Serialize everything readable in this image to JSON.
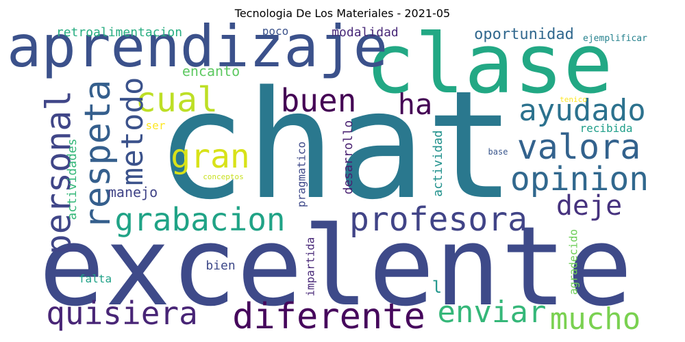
{
  "chart_data": {
    "type": "wordcloud",
    "title": "Tecnologia De Los Materiales - 2021-05",
    "words": [
      {
        "text": "chat",
        "weight": 100,
        "color": "#2a788e"
      },
      {
        "text": "excelente",
        "weight": 85,
        "color": "#3e4a89"
      },
      {
        "text": "clase",
        "weight": 62,
        "color": "#22a884"
      },
      {
        "text": "aprendizaje",
        "weight": 45,
        "color": "#3b518b"
      },
      {
        "text": "diferente",
        "weight": 28,
        "color": "#46085c"
      },
      {
        "text": "respeta",
        "weight": 26,
        "color": "#355f8d"
      },
      {
        "text": "personal",
        "weight": 26,
        "color": "#404688"
      },
      {
        "text": "valora",
        "weight": 26,
        "color": "#33628d"
      },
      {
        "text": "opinion",
        "weight": 25,
        "color": "#31688e"
      },
      {
        "text": "profesora",
        "weight": 25,
        "color": "#414487"
      },
      {
        "text": "quisiera",
        "weight": 24,
        "color": "#482576"
      },
      {
        "text": "cual",
        "weight": 24,
        "color": "#bddf26"
      },
      {
        "text": "grabacion",
        "weight": 23,
        "color": "#20a386"
      },
      {
        "text": "gran",
        "weight": 23,
        "color": "#d8e219"
      },
      {
        "text": "metodo",
        "weight": 23,
        "color": "#3b528b"
      },
      {
        "text": "buen",
        "weight": 22,
        "color": "#440154"
      },
      {
        "text": "ayudado",
        "weight": 22,
        "color": "#2c728e"
      },
      {
        "text": "enviar",
        "weight": 22,
        "color": "#35b779"
      },
      {
        "text": "mucho",
        "weight": 22,
        "color": "#7ad151"
      },
      {
        "text": "ha",
        "weight": 21,
        "color": "#440154"
      },
      {
        "text": "deje",
        "weight": 21,
        "color": "#46327e"
      },
      {
        "text": "oportunidad",
        "weight": 15,
        "color": "#31688e"
      },
      {
        "text": "encanto",
        "weight": 13,
        "color": "#5ec962"
      },
      {
        "text": "manejo",
        "weight": 13,
        "color": "#414487"
      },
      {
        "text": "modalidad",
        "weight": 12,
        "color": "#482878"
      },
      {
        "text": "retroalimentacion",
        "weight": 12,
        "color": "#27ad81"
      },
      {
        "text": "desarrollo",
        "weight": 12,
        "color": "#481f70"
      },
      {
        "text": "actividad",
        "weight": 12,
        "color": "#21918c"
      },
      {
        "text": "actividades",
        "weight": 12,
        "color": "#35b779"
      },
      {
        "text": "pragmatico",
        "weight": 11,
        "color": "#3e4989"
      },
      {
        "text": "impartida",
        "weight": 11,
        "color": "#482878"
      },
      {
        "text": "agradecido",
        "weight": 11,
        "color": "#6ece58"
      },
      {
        "text": "recibida",
        "weight": 10,
        "color": "#1f9e89"
      },
      {
        "text": "poco",
        "weight": 10,
        "color": "#3b528b"
      },
      {
        "text": "bien",
        "weight": 10,
        "color": "#3e4989"
      },
      {
        "text": "falta",
        "weight": 10,
        "color": "#1fa187"
      },
      {
        "text": "ser",
        "weight": 10,
        "color": "#fde725"
      },
      {
        "text": "ejemplificar",
        "weight": 8,
        "color": "#26828e"
      },
      {
        "text": "l",
        "weight": 12,
        "color": "#1f968b"
      },
      {
        "text": "conceptos",
        "weight": 7,
        "color": "#c8e020"
      },
      {
        "text": "base",
        "weight": 7,
        "color": "#39568c"
      },
      {
        "text": "tenico",
        "weight": 7,
        "color": "#fde725"
      }
    ]
  }
}
